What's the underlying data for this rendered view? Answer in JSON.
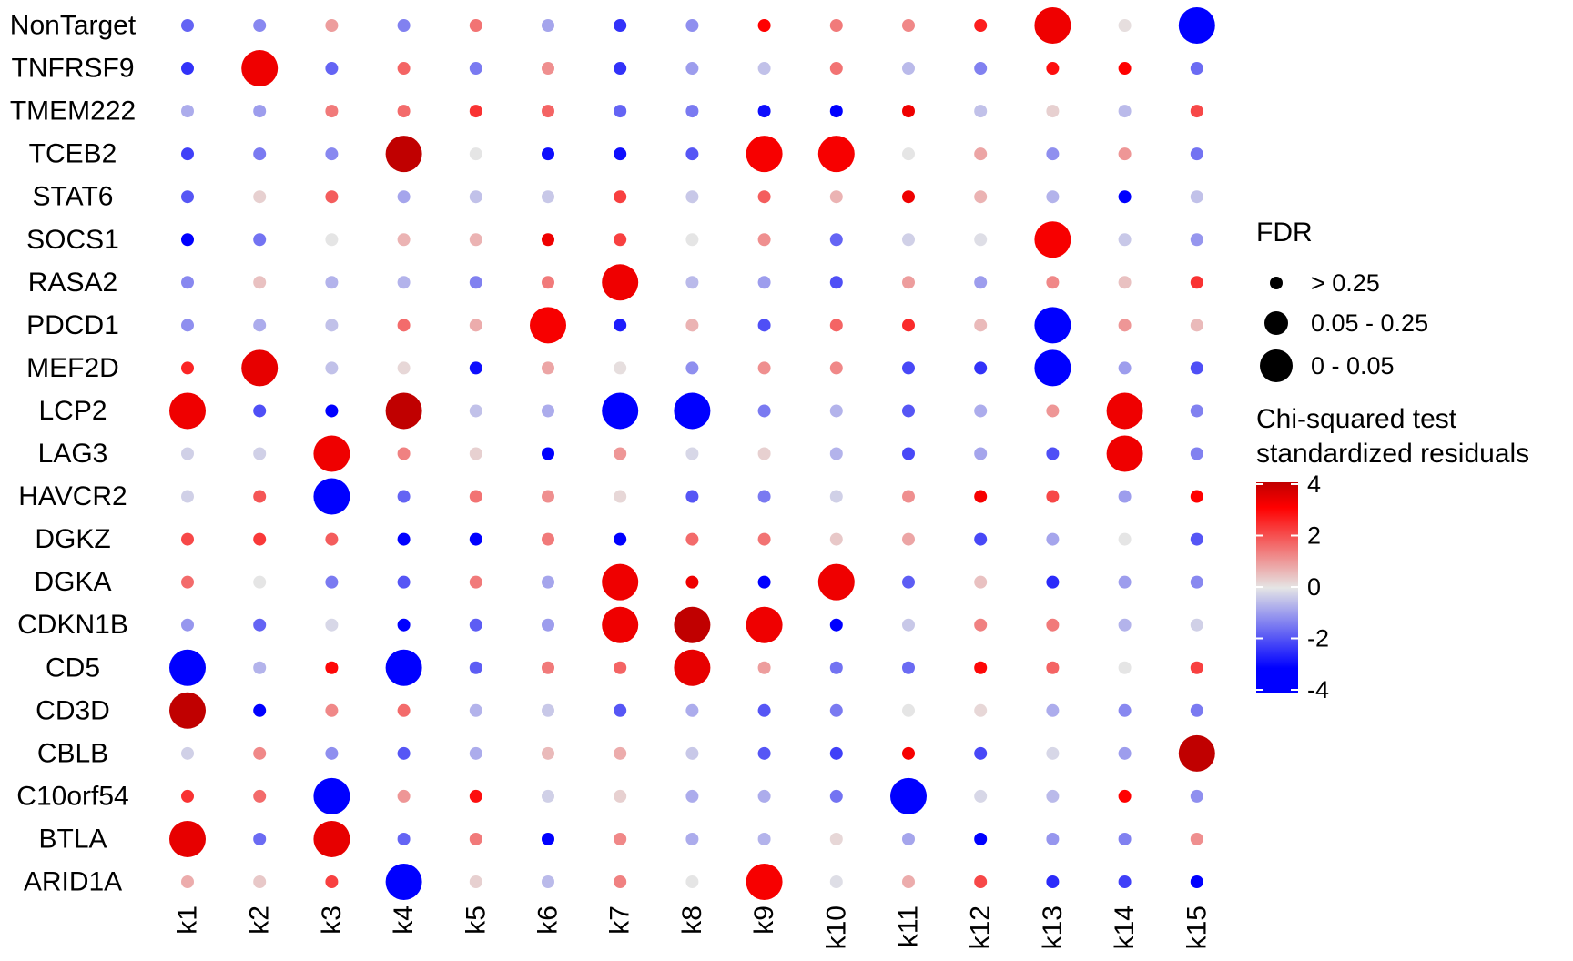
{
  "chart_data": {
    "type": "dot-matrix",
    "title": "",
    "xlabel": "",
    "ylabel": "",
    "rows": [
      "NonTarget",
      "TNFRSF9",
      "TMEM222",
      "TCEB2",
      "STAT6",
      "SOCS1",
      "RASA2",
      "PDCD1",
      "MEF2D",
      "LCP2",
      "LAG3",
      "HAVCR2",
      "DGKZ",
      "DGKA",
      "CDKN1B",
      "CD5",
      "CD3D",
      "CBLB",
      "C10orf54",
      "BTLA",
      "ARID1A"
    ],
    "columns": [
      "k1",
      "k2",
      "k3",
      "k4",
      "k5",
      "k6",
      "k7",
      "k8",
      "k9",
      "k10",
      "k11",
      "k12",
      "k13",
      "k14",
      "k15"
    ],
    "residuals": [
      [
        -1.8,
        -1.3,
        1.0,
        -1.4,
        1.6,
        -0.9,
        -2.5,
        -1.2,
        3.2,
        1.5,
        1.3,
        2.8,
        3.4,
        0.1,
        -3.5
      ],
      [
        -2.5,
        3.4,
        -1.8,
        1.8,
        -1.5,
        1.2,
        -2.5,
        -1.0,
        -0.5,
        1.6,
        -0.6,
        -1.4,
        3.0,
        3.2,
        -1.7
      ],
      [
        -0.8,
        -1.0,
        1.5,
        1.7,
        2.5,
        1.8,
        -1.8,
        -1.5,
        -3.0,
        -3.2,
        3.4,
        -0.5,
        0.3,
        -0.6,
        2.2
      ],
      [
        -2.3,
        -1.5,
        -1.3,
        4.0,
        0.0,
        -3.0,
        -3.0,
        -2.0,
        3.3,
        3.3,
        0.0,
        0.9,
        -1.2,
        1.1,
        -1.6
      ],
      [
        -2.0,
        0.3,
        1.9,
        -0.9,
        -0.5,
        -0.4,
        2.3,
        -0.4,
        1.9,
        0.7,
        3.4,
        0.7,
        -0.7,
        -3.5,
        -0.5
      ],
      [
        -3.5,
        -1.6,
        0.0,
        0.7,
        0.7,
        3.4,
        2.3,
        0.0,
        1.2,
        -1.8,
        -0.3,
        -0.1,
        3.3,
        -0.4,
        -1.1
      ],
      [
        -1.3,
        0.5,
        -0.7,
        -0.7,
        -1.4,
        1.5,
        3.4,
        -0.6,
        -1.0,
        -2.1,
        1.0,
        -1.0,
        1.3,
        0.5,
        2.5
      ],
      [
        -1.2,
        -0.8,
        -0.5,
        1.7,
        0.8,
        3.3,
        -2.8,
        0.7,
        -2.1,
        1.8,
        2.6,
        0.6,
        -3.6,
        1.1,
        0.6
      ],
      [
        2.7,
        3.5,
        -0.5,
        0.2,
        -3.0,
        0.9,
        0.1,
        -1.2,
        1.2,
        1.3,
        -2.2,
        -2.5,
        -3.6,
        -1.0,
        -2.1
      ],
      [
        3.4,
        -2.1,
        -3.5,
        4.0,
        -0.5,
        -0.8,
        -3.6,
        -3.6,
        -1.5,
        -0.7,
        -2.0,
        -0.8,
        1.1,
        3.4,
        -1.4
      ],
      [
        -0.3,
        -0.3,
        3.4,
        1.4,
        0.3,
        -3.5,
        1.1,
        -0.2,
        0.3,
        -0.7,
        -2.2,
        -0.9,
        -2.1,
        3.4,
        -1.4
      ],
      [
        -0.3,
        2.0,
        -3.6,
        -1.8,
        1.6,
        1.2,
        0.2,
        -2.0,
        -1.5,
        -0.3,
        1.2,
        3.3,
        2.2,
        -1.0,
        3.2
      ],
      [
        2.2,
        2.4,
        1.9,
        -3.2,
        -3.4,
        1.5,
        -3.3,
        1.7,
        1.6,
        0.4,
        0.9,
        -2.2,
        -0.9,
        0.0,
        -2.0
      ],
      [
        1.7,
        0.0,
        -1.5,
        -2.0,
        1.5,
        -0.9,
        3.4,
        3.4,
        -3.2,
        3.4,
        -1.9,
        0.5,
        -2.6,
        -1.0,
        -1.3
      ],
      [
        -1.1,
        -1.8,
        -0.2,
        -3.3,
        -1.9,
        -1.0,
        3.4,
        4.0,
        3.4,
        -3.2,
        -0.4,
        1.4,
        1.5,
        -0.7,
        -0.3
      ],
      [
        -3.6,
        -0.7,
        3.1,
        -3.6,
        -1.9,
        1.5,
        1.8,
        3.5,
        1.0,
        -1.6,
        -1.7,
        3.1,
        1.8,
        0.0,
        2.3
      ],
      [
        4.0,
        -3.6,
        1.3,
        1.7,
        -0.7,
        -0.4,
        -2.0,
        -0.8,
        -2.0,
        -1.5,
        0.0,
        0.2,
        -0.8,
        -1.3,
        -1.5
      ],
      [
        -0.3,
        1.3,
        -1.2,
        -2.0,
        -0.8,
        0.6,
        0.8,
        -0.4,
        -2.0,
        -2.3,
        3.3,
        -2.2,
        -0.2,
        -1.0,
        4.0
      ],
      [
        2.5,
        1.7,
        -3.6,
        1.1,
        3.0,
        -0.3,
        0.3,
        -0.8,
        -0.8,
        -1.6,
        -3.6,
        -0.2,
        -0.6,
        3.2,
        -1.2
      ],
      [
        3.5,
        -1.7,
        3.5,
        -1.8,
        1.5,
        -3.5,
        1.3,
        -0.8,
        -0.7,
        0.2,
        -0.9,
        -3.4,
        -1.1,
        -1.4,
        1.2
      ],
      [
        0.8,
        0.4,
        2.3,
        -3.6,
        0.3,
        -0.6,
        1.4,
        0.0,
        3.3,
        -0.1,
        0.8,
        2.2,
        -2.6,
        -2.3,
        -3.4
      ]
    ],
    "fdr_class": [
      [
        0,
        0,
        0,
        0,
        0,
        0,
        0,
        0,
        0,
        0,
        0,
        0,
        2,
        0,
        2
      ],
      [
        0,
        2,
        0,
        0,
        0,
        0,
        0,
        0,
        0,
        0,
        0,
        0,
        0,
        0,
        0
      ],
      [
        0,
        0,
        0,
        0,
        0,
        0,
        0,
        0,
        0,
        0,
        0,
        0,
        0,
        0,
        0
      ],
      [
        0,
        0,
        0,
        2,
        0,
        0,
        0,
        0,
        2,
        2,
        0,
        0,
        0,
        0,
        0
      ],
      [
        0,
        0,
        0,
        0,
        0,
        0,
        0,
        0,
        0,
        0,
        0,
        0,
        0,
        0,
        0
      ],
      [
        0,
        0,
        0,
        0,
        0,
        0,
        0,
        0,
        0,
        0,
        0,
        0,
        2,
        0,
        0
      ],
      [
        0,
        0,
        0,
        0,
        0,
        0,
        2,
        0,
        0,
        0,
        0,
        0,
        0,
        0,
        0
      ],
      [
        0,
        0,
        0,
        0,
        0,
        2,
        0,
        0,
        0,
        0,
        0,
        0,
        2,
        0,
        0
      ],
      [
        0,
        2,
        0,
        0,
        0,
        0,
        0,
        0,
        0,
        0,
        0,
        0,
        2,
        0,
        0
      ],
      [
        2,
        0,
        0,
        2,
        0,
        0,
        2,
        2,
        0,
        0,
        0,
        0,
        0,
        2,
        0
      ],
      [
        0,
        0,
        2,
        0,
        0,
        0,
        0,
        0,
        0,
        0,
        0,
        0,
        0,
        2,
        0
      ],
      [
        0,
        0,
        2,
        0,
        0,
        0,
        0,
        0,
        0,
        0,
        0,
        0,
        0,
        0,
        0
      ],
      [
        0,
        0,
        0,
        0,
        0,
        0,
        0,
        0,
        0,
        0,
        0,
        0,
        0,
        0,
        0
      ],
      [
        0,
        0,
        0,
        0,
        0,
        0,
        2,
        0,
        0,
        2,
        0,
        0,
        0,
        0,
        0
      ],
      [
        0,
        0,
        0,
        0,
        0,
        0,
        2,
        2,
        2,
        0,
        0,
        0,
        0,
        0,
        0
      ],
      [
        2,
        0,
        0,
        2,
        0,
        0,
        0,
        2,
        0,
        0,
        0,
        0,
        0,
        0,
        0
      ],
      [
        2,
        0,
        0,
        0,
        0,
        0,
        0,
        0,
        0,
        0,
        0,
        0,
        0,
        0,
        0
      ],
      [
        0,
        0,
        0,
        0,
        0,
        0,
        0,
        0,
        0,
        0,
        0,
        0,
        0,
        0,
        2
      ],
      [
        0,
        0,
        2,
        0,
        0,
        0,
        0,
        0,
        0,
        0,
        2,
        0,
        0,
        0,
        0
      ],
      [
        2,
        0,
        2,
        0,
        0,
        0,
        0,
        0,
        0,
        0,
        0,
        0,
        0,
        0,
        0
      ],
      [
        0,
        0,
        0,
        2,
        0,
        0,
        0,
        0,
        2,
        0,
        0,
        0,
        0,
        0,
        0
      ]
    ],
    "size_legend": {
      "title": "FDR",
      "labels": [
        "> 0.25",
        "0.05 - 0.25",
        "0 - 0.05"
      ]
    },
    "color_legend": {
      "title_lines": [
        "Chi-squared test",
        "standardized residuals"
      ],
      "ticks": [
        4,
        2,
        0,
        -2,
        -4
      ],
      "range": [
        -4,
        4
      ]
    },
    "color_scale": {
      "low": "#0000ff",
      "mid": "#e5e5e5",
      "high": "#ff0000",
      "extreme_high": "#c00000"
    }
  }
}
